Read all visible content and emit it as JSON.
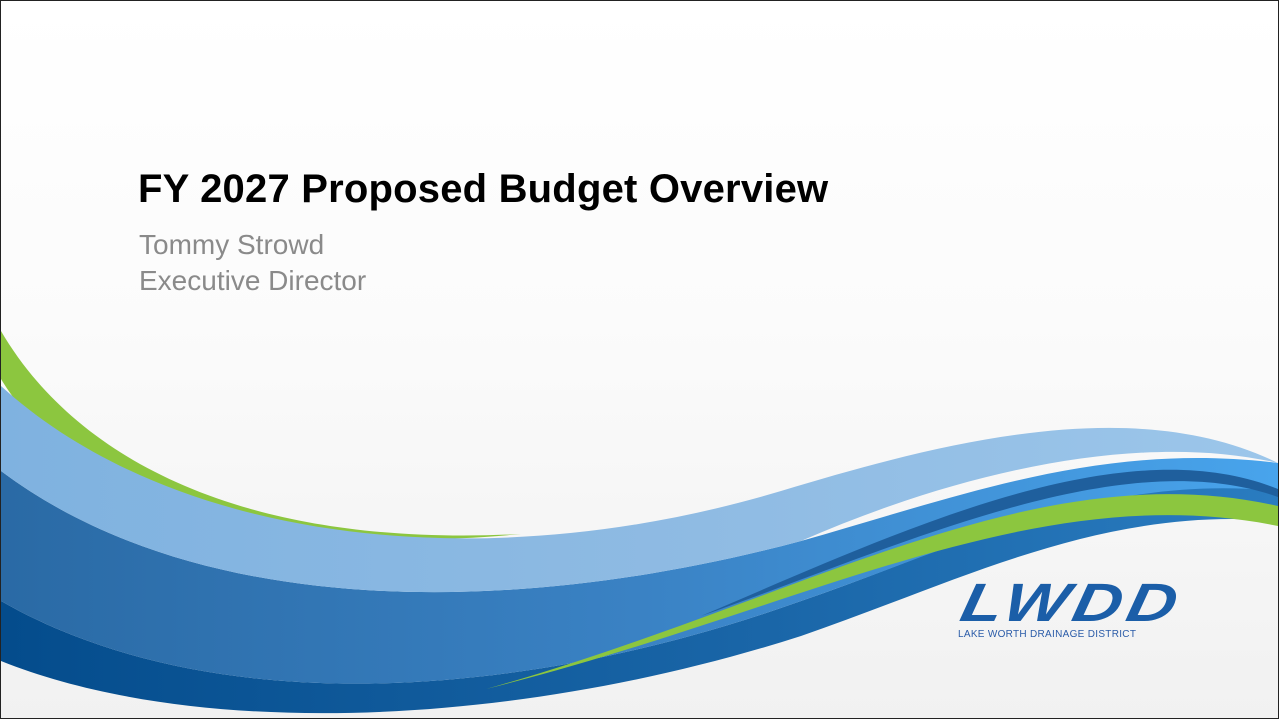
{
  "slide": {
    "title": "FY 2027 Proposed Budget Overview",
    "presenter_name": "Tommy Strowd",
    "presenter_role": "Executive Director"
  },
  "logo": {
    "mark_text": "LWDD",
    "tagline": "LAKE WORTH DRAINAGE DISTRICT"
  },
  "colors": {
    "green": "#8cc63f",
    "light_blue": "#8ab8e0",
    "sky_blue": "#45a3ea",
    "mid_blue": "#3478b8",
    "dark_blue": "#0c4f8f",
    "logo_blue": "#1b5ea8"
  }
}
